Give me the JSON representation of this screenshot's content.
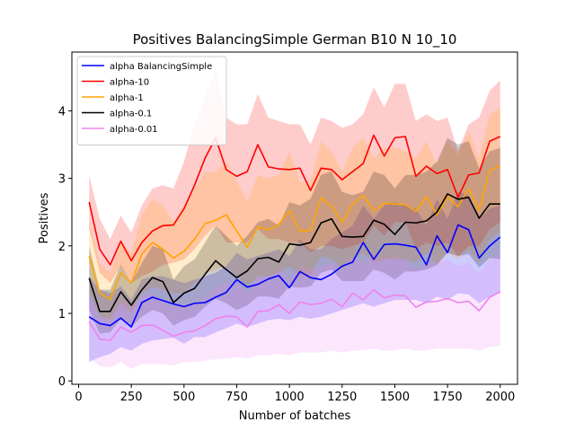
{
  "chart_data": {
    "type": "line",
    "title": "Positives BalancingSimple German B10 N 10_10",
    "xlabel": "Number of batches",
    "ylabel": "Positives",
    "xlim": [
      -32,
      2082
    ],
    "ylim": [
      -0.05,
      4.87
    ],
    "xticks": [
      0,
      250,
      500,
      750,
      1000,
      1250,
      1500,
      1750,
      2000
    ],
    "yticks": [
      0,
      1,
      2,
      3,
      4
    ],
    "grid": false,
    "legend_position": "top-left",
    "x": [
      50,
      100,
      150,
      200,
      250,
      300,
      350,
      400,
      450,
      500,
      550,
      600,
      650,
      700,
      750,
      800,
      850,
      900,
      950,
      1000,
      1050,
      1100,
      1150,
      1200,
      1250,
      1300,
      1350,
      1400,
      1450,
      1500,
      1550,
      1600,
      1650,
      1700,
      1750,
      1800,
      1850,
      1900,
      1950,
      2000
    ],
    "series": [
      {
        "name": "alpha BalancingSimple",
        "color": "#0000ff",
        "values": [
          0.95,
          0.85,
          0.82,
          0.93,
          0.8,
          1.16,
          1.24,
          1.19,
          1.14,
          1.1,
          1.15,
          1.16,
          1.24,
          1.31,
          1.5,
          1.39,
          1.43,
          1.51,
          1.56,
          1.38,
          1.62,
          1.53,
          1.5,
          1.58,
          1.7,
          1.76,
          2.05,
          1.8,
          2.02,
          2.03,
          2.01,
          1.98,
          1.72,
          2.15,
          1.9,
          2.31,
          2.24,
          1.82,
          2.0,
          2.13
        ],
        "lower": [
          0.28,
          0.35,
          0.4,
          0.5,
          0.45,
          0.55,
          0.6,
          0.62,
          0.64,
          0.55,
          0.65,
          0.65,
          0.72,
          0.78,
          0.85,
          0.8,
          0.85,
          0.9,
          0.92,
          0.9,
          0.95,
          0.92,
          0.95,
          1.0,
          1.05,
          1.1,
          1.15,
          1.1,
          1.15,
          1.2,
          1.2,
          1.2,
          1.15,
          1.25,
          1.2,
          1.3,
          1.28,
          1.15,
          1.25,
          1.3
        ],
        "upper": [
          1.55,
          1.35,
          1.3,
          1.4,
          1.2,
          1.5,
          1.55,
          1.55,
          1.5,
          1.45,
          1.5,
          1.55,
          1.6,
          1.7,
          1.9,
          1.8,
          1.85,
          1.9,
          1.95,
          1.85,
          2.1,
          1.95,
          1.95,
          2.1,
          2.2,
          2.3,
          2.6,
          2.4,
          2.6,
          2.65,
          2.6,
          2.55,
          2.3,
          2.7,
          2.4,
          2.8,
          2.75,
          2.4,
          2.55,
          2.6
        ]
      },
      {
        "name": "alpha-10",
        "color": "#ff0000",
        "values": [
          2.65,
          1.95,
          1.72,
          2.07,
          1.78,
          2.05,
          2.22,
          2.3,
          2.31,
          2.55,
          2.9,
          3.3,
          3.6,
          3.13,
          3.03,
          3.1,
          3.5,
          3.17,
          3.14,
          3.13,
          3.15,
          2.82,
          3.15,
          3.13,
          2.98,
          3.1,
          3.22,
          3.64,
          3.33,
          3.6,
          3.62,
          3.03,
          3.18,
          3.07,
          3.13,
          2.72,
          3.05,
          3.08,
          3.55,
          3.62
        ],
        "lower": [
          2.25,
          1.6,
          1.45,
          1.7,
          1.45,
          1.55,
          1.62,
          1.72,
          1.75,
          1.8,
          1.95,
          2.15,
          2.3,
          2.05,
          2.05,
          2.05,
          2.25,
          2.1,
          2.1,
          2.05,
          2.05,
          1.9,
          2.0,
          2.0,
          1.95,
          2.0,
          2.05,
          2.3,
          2.15,
          2.35,
          2.35,
          1.95,
          2.05,
          2.0,
          2.05,
          1.85,
          2.0,
          2.0,
          2.25,
          2.35
        ],
        "upper": [
          3.05,
          2.4,
          2.1,
          2.45,
          2.2,
          2.6,
          2.85,
          2.9,
          2.85,
          3.25,
          3.8,
          4.2,
          4.6,
          3.9,
          3.8,
          3.8,
          4.25,
          3.9,
          3.85,
          3.8,
          3.8,
          3.5,
          3.9,
          3.85,
          3.75,
          3.8,
          3.95,
          4.35,
          4.05,
          4.4,
          4.4,
          3.85,
          3.95,
          3.85,
          3.9,
          3.4,
          3.8,
          3.9,
          4.3,
          4.45
        ]
      },
      {
        "name": "alpha-1",
        "color": "#ffa500",
        "values": [
          1.85,
          1.3,
          1.21,
          1.6,
          1.45,
          1.88,
          2.05,
          1.95,
          1.82,
          1.92,
          2.1,
          2.33,
          2.38,
          2.46,
          2.22,
          1.98,
          2.28,
          2.24,
          2.32,
          2.52,
          2.22,
          2.23,
          2.71,
          2.59,
          2.35,
          2.62,
          2.75,
          2.52,
          2.63,
          2.62,
          2.61,
          2.51,
          2.73,
          2.46,
          2.73,
          2.58,
          2.85,
          2.53,
          3.12,
          3.18
        ],
        "lower": [
          1.3,
          0.95,
          0.9,
          1.15,
          1.0,
          1.3,
          1.4,
          1.35,
          1.3,
          1.3,
          1.45,
          1.6,
          1.65,
          1.7,
          1.55,
          1.4,
          1.55,
          1.55,
          1.6,
          1.7,
          1.55,
          1.55,
          1.85,
          1.8,
          1.65,
          1.8,
          1.9,
          1.75,
          1.8,
          1.8,
          1.8,
          1.75,
          1.9,
          1.7,
          1.9,
          1.8,
          1.95,
          1.75,
          2.1,
          2.2
        ],
        "upper": [
          2.4,
          1.75,
          1.6,
          2.05,
          1.9,
          2.45,
          2.7,
          2.6,
          2.35,
          2.6,
          2.85,
          3.1,
          3.1,
          3.25,
          2.95,
          2.65,
          3.05,
          3.0,
          3.05,
          3.4,
          2.95,
          2.95,
          3.55,
          3.4,
          3.1,
          3.45,
          3.6,
          3.3,
          3.45,
          3.45,
          3.4,
          3.3,
          3.55,
          3.2,
          3.55,
          3.35,
          3.7,
          3.3,
          3.95,
          4.05
        ]
      },
      {
        "name": "alpha-0.1",
        "color": "#000000",
        "values": [
          1.52,
          1.03,
          1.03,
          1.32,
          1.12,
          1.35,
          1.53,
          1.47,
          1.16,
          1.3,
          1.37,
          1.58,
          1.78,
          1.65,
          1.53,
          1.63,
          1.81,
          1.83,
          1.76,
          2.03,
          2.01,
          2.05,
          2.34,
          2.4,
          2.14,
          2.13,
          2.14,
          2.38,
          2.32,
          2.17,
          2.35,
          2.34,
          2.37,
          2.5,
          2.77,
          2.69,
          2.72,
          2.41,
          2.62,
          2.62
        ],
        "lower": [
          1.05,
          0.7,
          0.72,
          0.92,
          0.8,
          0.95,
          1.05,
          1.0,
          0.82,
          0.9,
          0.95,
          1.1,
          1.22,
          1.15,
          1.05,
          1.12,
          1.25,
          1.25,
          1.22,
          1.4,
          1.38,
          1.4,
          1.6,
          1.65,
          1.48,
          1.48,
          1.48,
          1.65,
          1.6,
          1.5,
          1.62,
          1.62,
          1.65,
          1.72,
          1.9,
          1.85,
          1.88,
          1.68,
          1.82,
          1.8
        ],
        "upper": [
          2.0,
          1.35,
          1.35,
          1.72,
          1.45,
          1.75,
          2.0,
          1.95,
          1.5,
          1.7,
          1.8,
          2.05,
          2.3,
          2.15,
          2.0,
          2.15,
          2.35,
          2.4,
          2.3,
          2.65,
          2.6,
          2.7,
          3.05,
          3.1,
          2.8,
          2.75,
          2.8,
          3.1,
          3.05,
          2.85,
          3.05,
          3.05,
          3.1,
          3.25,
          3.6,
          3.5,
          3.55,
          3.15,
          3.4,
          3.45
        ]
      },
      {
        "name": "alpha-0.01",
        "color": "#ee82ee",
        "values": [
          0.88,
          0.62,
          0.6,
          0.8,
          0.72,
          0.82,
          0.83,
          0.75,
          0.66,
          0.72,
          0.74,
          0.82,
          0.92,
          0.96,
          0.95,
          0.8,
          1.03,
          1.04,
          1.13,
          1.0,
          1.17,
          1.13,
          1.15,
          1.21,
          1.1,
          1.3,
          1.2,
          1.35,
          1.23,
          1.27,
          1.26,
          1.09,
          1.17,
          1.18,
          1.22,
          1.16,
          1.18,
          1.04,
          1.24,
          1.32
        ],
        "lower": [
          0.35,
          0.22,
          0.2,
          0.28,
          0.18,
          0.25,
          0.25,
          0.25,
          0.23,
          0.28,
          0.28,
          0.3,
          0.32,
          0.33,
          0.35,
          0.33,
          0.38,
          0.38,
          0.4,
          0.38,
          0.42,
          0.42,
          0.42,
          0.45,
          0.42,
          0.45,
          0.45,
          0.48,
          0.45,
          0.45,
          0.48,
          0.45,
          0.45,
          0.48,
          0.48,
          0.48,
          0.48,
          0.45,
          0.5,
          0.52
        ],
        "upper": [
          1.3,
          0.95,
          0.95,
          1.2,
          1.1,
          1.25,
          1.3,
          1.2,
          1.1,
          1.15,
          1.15,
          1.25,
          1.4,
          1.45,
          1.45,
          1.3,
          1.55,
          1.55,
          1.65,
          1.5,
          1.7,
          1.65,
          1.7,
          1.75,
          1.65,
          1.85,
          1.75,
          1.9,
          1.8,
          1.85,
          1.8,
          1.65,
          1.75,
          1.75,
          1.8,
          1.7,
          1.75,
          1.6,
          1.8,
          1.9
        ]
      }
    ]
  }
}
